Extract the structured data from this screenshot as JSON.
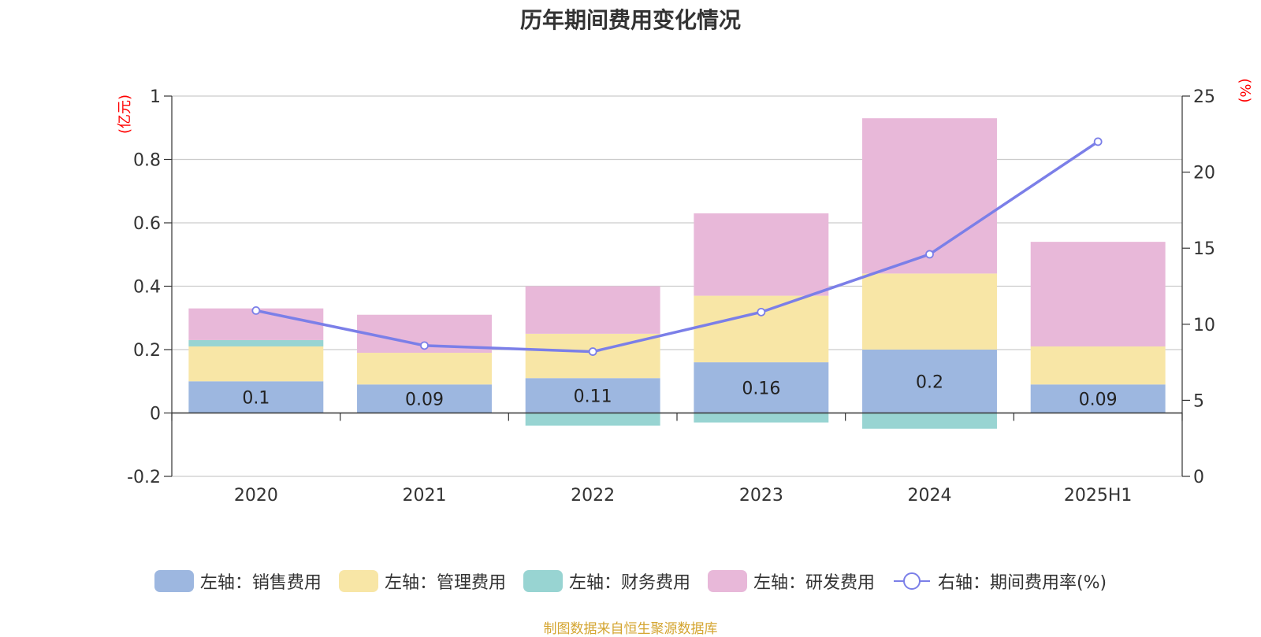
{
  "chart_data": {
    "type": "bar",
    "title": "历年期间费用变化情况",
    "categories": [
      "2020",
      "2021",
      "2022",
      "2023",
      "2024",
      "2025H1"
    ],
    "y_left": {
      "unit_label": "(亿元)",
      "ylim": [
        -0.2,
        1
      ],
      "ticks": [
        "-0.2",
        "0",
        "0.2",
        "0.4",
        "0.6",
        "0.8",
        "1"
      ]
    },
    "y_right": {
      "unit_label": "(%)",
      "ylim": [
        0,
        25
      ],
      "ticks": [
        "0",
        "5",
        "10",
        "15",
        "20",
        "25"
      ]
    },
    "grid": true,
    "legend_position": "bottom",
    "series": [
      {
        "name": "左轴：销售费用",
        "axis": "left",
        "stack": true,
        "color": "#9db7e0",
        "values": [
          0.1,
          0.09,
          0.11,
          0.16,
          0.2,
          0.09
        ],
        "labels": [
          "0.1",
          "0.09",
          "0.11",
          "0.16",
          "0.2",
          "0.09"
        ]
      },
      {
        "name": "左轴：管理费用",
        "axis": "left",
        "stack": true,
        "color": "#f8e6a6",
        "values": [
          0.11,
          0.1,
          0.14,
          0.21,
          0.24,
          0.12
        ]
      },
      {
        "name": "左轴：财务费用",
        "axis": "left",
        "stack": true,
        "color": "#98d4d2",
        "values": [
          0.02,
          0.0,
          -0.04,
          -0.03,
          -0.05,
          0.0
        ]
      },
      {
        "name": "左轴：研发费用",
        "axis": "left",
        "stack": true,
        "color": "#e8b8d9",
        "values": [
          0.1,
          0.12,
          0.15,
          0.26,
          0.49,
          0.33
        ]
      },
      {
        "name": "右轴：期间费用率(%)",
        "axis": "right",
        "type": "line",
        "color": "#7b7fe8",
        "values": [
          10.9,
          8.6,
          8.2,
          10.8,
          14.6,
          22.0
        ]
      }
    ]
  },
  "source_note": "制图数据来自恒生聚源数据库",
  "axis_label_color": "#ff0000"
}
